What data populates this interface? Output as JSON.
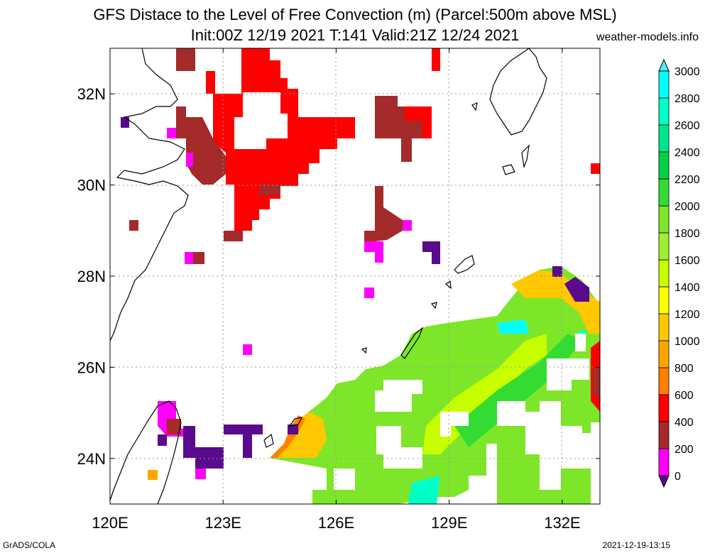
{
  "title": {
    "line1": "GFS Distace to the Level of Free Convection (m) (Parcel:500m above MSL)",
    "line2": "Init:00Z 12/19 2021 T:141 Valid:21Z 12/24 2021"
  },
  "site": "weather-models.info",
  "footer": {
    "left": "GrADS/COLA",
    "right": "2021-12-19-13:15"
  },
  "map": {
    "lon_range": [
      120,
      133
    ],
    "lat_range": [
      23,
      33
    ],
    "lon_ticks": [
      {
        "v": 120,
        "label": "120E"
      },
      {
        "v": 123,
        "label": "123E"
      },
      {
        "v": 126,
        "label": "126E"
      },
      {
        "v": 129,
        "label": "129E"
      },
      {
        "v": 132,
        "label": "132E"
      }
    ],
    "lat_ticks": [
      {
        "v": 32,
        "label": "32N"
      },
      {
        "v": 30,
        "label": "30N"
      },
      {
        "v": 28,
        "label": "28N"
      },
      {
        "v": 26,
        "label": "26N"
      },
      {
        "v": 24,
        "label": "24N"
      }
    ],
    "grid": true
  },
  "colorbar": {
    "labels": [
      "0",
      "200",
      "400",
      "600",
      "800",
      "1000",
      "1200",
      "1400",
      "1600",
      "1800",
      "2000",
      "2200",
      "2400",
      "2600",
      "2800",
      "3000"
    ],
    "colors": [
      "#5a0a8c",
      "#ff00ff",
      "#a52a2a",
      "#ff0000",
      "#ff7f00",
      "#ffa500",
      "#ffc800",
      "#ffff00",
      "#c8ff00",
      "#a0f032",
      "#7de628",
      "#32dc32",
      "#00d246",
      "#00e68c",
      "#00ffc8",
      "#00ffff",
      "#50f0f0"
    ]
  }
}
